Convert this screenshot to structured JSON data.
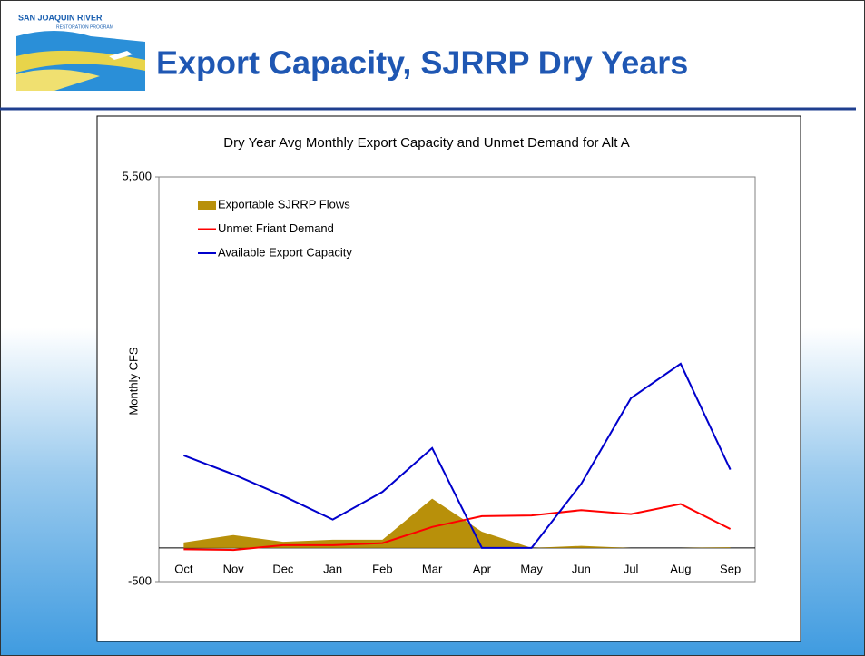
{
  "slide": {
    "title": "Export Capacity, SJRRP Dry Years",
    "logo_lines": [
      "SAN JOAQUIN RIVER",
      "RESTORATION PROGRAM"
    ]
  },
  "chart_data": {
    "type": "line",
    "title": "Dry Year Avg Monthly Export Capacity and Unmet Demand for Alt A",
    "y_label": "Monthly CFS",
    "categories": [
      "Oct",
      "Nov",
      "Dec",
      "Jan",
      "Feb",
      "Mar",
      "Apr",
      "May",
      "Jun",
      "Jul",
      "Aug",
      "Sep"
    ],
    "series": [
      {
        "name": "Exportable SJRRP Flows",
        "kind": "area",
        "color": "#b8900a",
        "values": [
          80,
          190,
          90,
          120,
          120,
          730,
          240,
          0,
          30,
          0,
          0,
          10
        ]
      },
      {
        "name": "Unmet Friant Demand",
        "kind": "line",
        "color": "#ff0000",
        "values": [
          -20,
          -30,
          40,
          40,
          70,
          310,
          470,
          480,
          560,
          500,
          650,
          280
        ]
      },
      {
        "name": "Available Export Capacity",
        "kind": "line",
        "color": "#0000cc",
        "values": [
          1370,
          1090,
          770,
          420,
          830,
          1480,
          0,
          0,
          950,
          2220,
          2730,
          1160
        ]
      }
    ],
    "ylim": [
      -500,
      5500
    ],
    "yticks": [
      -500,
      {
        "value": 5500,
        "label": "5,500"
      }
    ],
    "grid": false,
    "legend": "upper-left"
  }
}
